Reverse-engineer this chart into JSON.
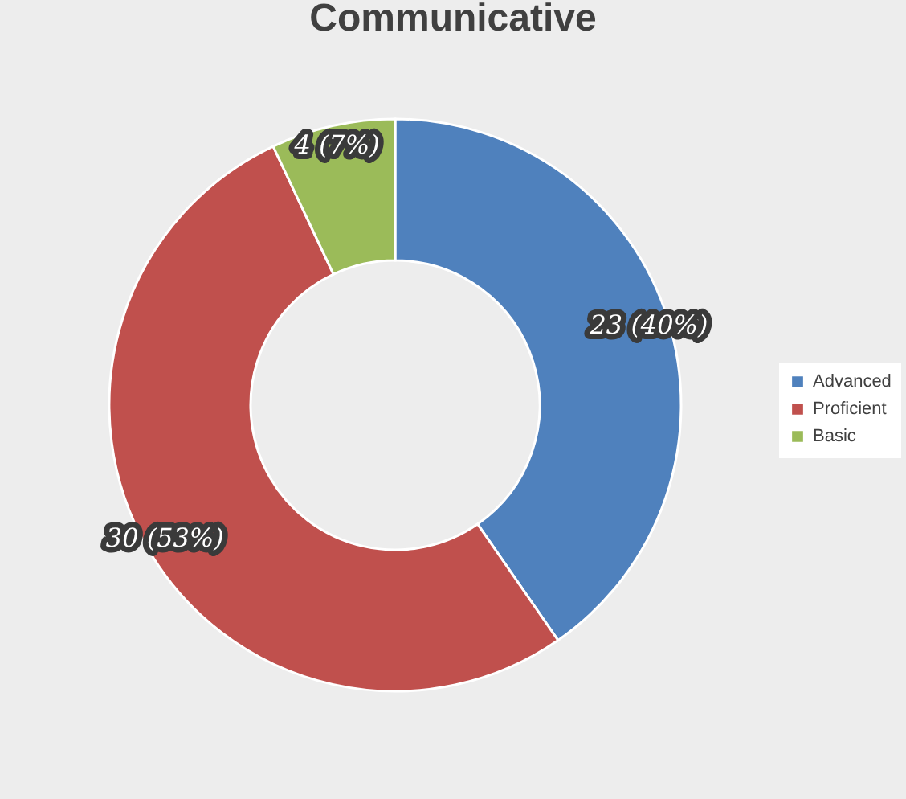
{
  "chart_data": {
    "type": "donut",
    "title": "Communicative",
    "categories": [
      "Advanced",
      "Proficient",
      "Basic"
    ],
    "values": [
      23,
      30,
      4
    ],
    "colors": [
      "#4f81bd",
      "#c0504d",
      "#9bbb59"
    ],
    "value_labels": [
      "23 (40%)",
      "30 (53%)",
      "4 (7%)"
    ],
    "legend": "right"
  }
}
